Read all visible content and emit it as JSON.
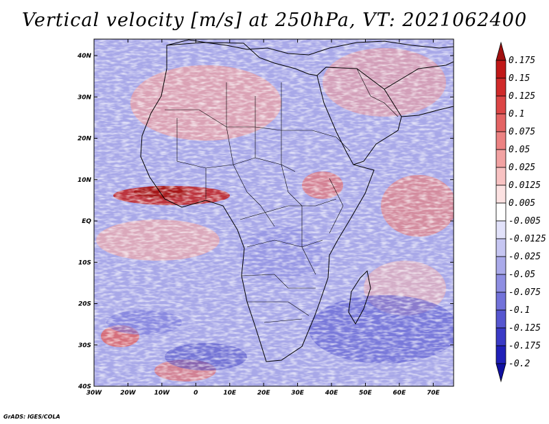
{
  "title": "Vertical velocity [m/s] at 250hPa, VT: 2021062400",
  "footer": "GrADS: IGES/COLA",
  "map": {
    "lon_range": [
      -30,
      76
    ],
    "lat_range": [
      -40,
      44
    ],
    "lon_ticks": [
      {
        "value": -30,
        "label": "30W"
      },
      {
        "value": -20,
        "label": "20W"
      },
      {
        "value": -10,
        "label": "10W"
      },
      {
        "value": 0,
        "label": "0"
      },
      {
        "value": 10,
        "label": "10E"
      },
      {
        "value": 20,
        "label": "20E"
      },
      {
        "value": 30,
        "label": "30E"
      },
      {
        "value": 40,
        "label": "40E"
      },
      {
        "value": 50,
        "label": "50E"
      },
      {
        "value": 60,
        "label": "60E"
      },
      {
        "value": 70,
        "label": "70E"
      }
    ],
    "lat_ticks": [
      {
        "value": 40,
        "label": "40N"
      },
      {
        "value": 30,
        "label": "30N"
      },
      {
        "value": 20,
        "label": "20N"
      },
      {
        "value": 10,
        "label": "10N"
      },
      {
        "value": 0,
        "label": "EQ"
      },
      {
        "value": -10,
        "label": "10S"
      },
      {
        "value": -20,
        "label": "20S"
      },
      {
        "value": -30,
        "label": "30S"
      },
      {
        "value": -40,
        "label": "40S"
      }
    ]
  },
  "colorbar": {
    "levels": [
      "0.175",
      "0.15",
      "0.125",
      "0.1",
      "0.075",
      "0.05",
      "0.025",
      "0.0125",
      "0.005",
      "-0.005",
      "-0.0125",
      "-0.025",
      "-0.05",
      "-0.075",
      "-0.1",
      "-0.125",
      "-0.175",
      "-0.2"
    ],
    "colors": [
      "#a01010",
      "#c01818",
      "#d02a2a",
      "#dc4646",
      "#e46464",
      "#ec8282",
      "#f2a2a2",
      "#f8c2c2",
      "#fce2e2",
      "#ffffff",
      "#e2e2fa",
      "#c6c6f2",
      "#aaaaea",
      "#8e8ee2",
      "#7272da",
      "#5656d0",
      "#3a3ac6",
      "#2020b8",
      "#1010a0"
    ]
  }
}
